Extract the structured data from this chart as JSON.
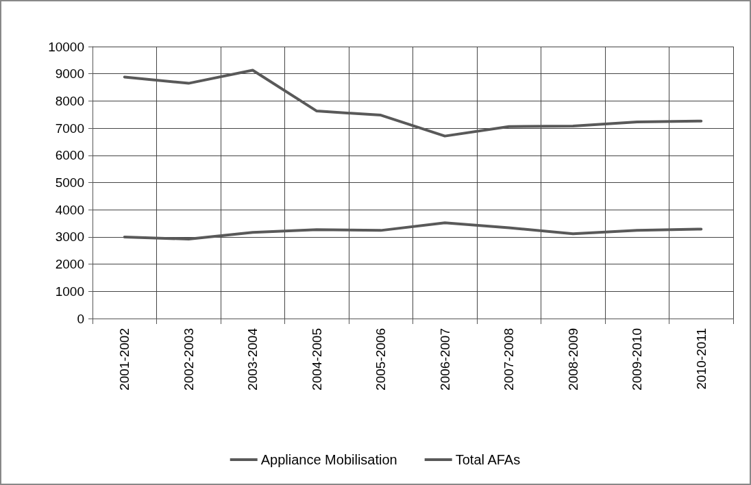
{
  "chart_data": {
    "type": "line",
    "categories": [
      "2001-2002",
      "2002-2003",
      "2003-2004",
      "2004-2005",
      "2005-2006",
      "2006-2007",
      "2007-2008",
      "2008-2009",
      "2009-2010",
      "2010-2011"
    ],
    "series": [
      {
        "name": "Appliance Mobilisation",
        "color": "#595959",
        "values": [
          3000,
          2920,
          3170,
          3270,
          3240,
          3520,
          3340,
          3120,
          3240,
          3290
        ]
      },
      {
        "name": "Total AFAs",
        "color": "#595959",
        "values": [
          8880,
          8650,
          9130,
          7630,
          7480,
          6710,
          7060,
          7080,
          7230,
          7260
        ]
      }
    ],
    "ylim": [
      0,
      10000
    ],
    "yticks": [
      0,
      1000,
      2000,
      3000,
      4000,
      5000,
      6000,
      7000,
      8000,
      9000,
      10000
    ],
    "grid": true,
    "legend": "bottom",
    "marker": "none",
    "line_style": "solid"
  }
}
